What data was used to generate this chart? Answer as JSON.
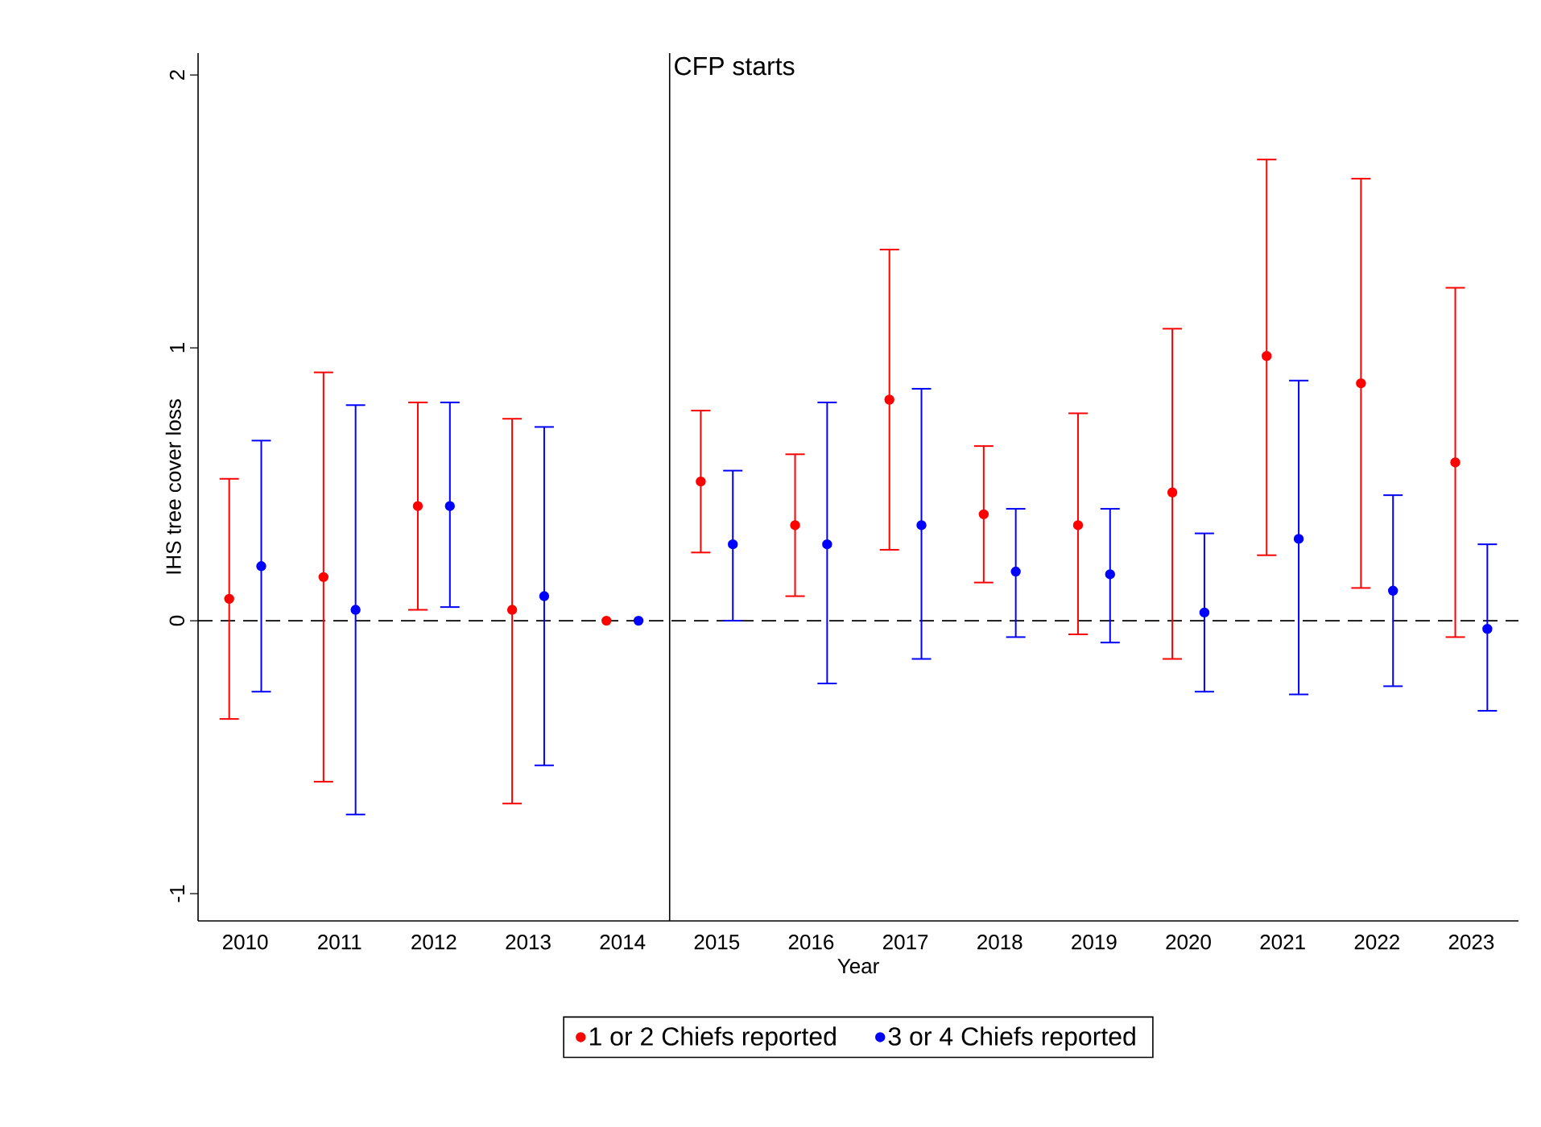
{
  "chart_data": {
    "type": "scatter",
    "xlabel": "Year",
    "ylabel": "IHS tree cover loss",
    "xlim": [
      2009.5,
      2023.5
    ],
    "xticks": [
      2010,
      2011,
      2012,
      2013,
      2014,
      2015,
      2016,
      2017,
      2018,
      2019,
      2020,
      2021,
      2022,
      2023
    ],
    "ylim": [
      -1.1,
      2.08
    ],
    "yticks": [
      -1,
      0,
      1,
      2
    ],
    "marker": "circle",
    "legend": "bottom",
    "ref_lines": [
      {
        "axis": "y",
        "value": 0,
        "line_style": "dashed",
        "color": "#000000"
      },
      {
        "axis": "x",
        "value": 2014.5,
        "label": "CFP starts",
        "line_style": "solid",
        "color": "#000000"
      }
    ],
    "series": [
      {
        "name": "1 or 2 Chiefs reported",
        "color": "#ff0000",
        "x": [
          2009.83,
          2010.83,
          2011.83,
          2012.83,
          2013.83,
          2014.83,
          2015.83,
          2016.83,
          2017.83,
          2018.83,
          2019.83,
          2020.83,
          2021.83,
          2022.83
        ],
        "values": [
          0.08,
          0.16,
          0.42,
          0.04,
          0,
          0.51,
          0.35,
          0.81,
          0.39,
          0.35,
          0.47,
          0.97,
          0.87,
          0.58
        ],
        "errors": [
          [
            -0.36,
            0.52
          ],
          [
            -0.59,
            0.91
          ],
          [
            0.04,
            0.8
          ],
          [
            -0.67,
            0.74
          ],
          null,
          [
            0.25,
            0.77
          ],
          [
            0.09,
            0.61
          ],
          [
            0.26,
            1.36
          ],
          [
            0.14,
            0.64
          ],
          [
            -0.05,
            0.76
          ],
          [
            -0.14,
            1.07
          ],
          [
            0.24,
            1.69
          ],
          [
            0.12,
            1.62
          ],
          [
            -0.06,
            1.22
          ]
        ]
      },
      {
        "name": "3 or 4 Chiefs reported",
        "color": "#0000ff",
        "x": [
          2010.17,
          2011.17,
          2012.17,
          2013.17,
          2014.17,
          2015.17,
          2016.17,
          2017.17,
          2018.17,
          2019.17,
          2020.17,
          2021.17,
          2022.17,
          2023.17
        ],
        "values": [
          0.2,
          0.04,
          0.42,
          0.09,
          0,
          0.28,
          0.28,
          0.35,
          0.18,
          0.17,
          0.03,
          0.3,
          0.11,
          -0.03
        ],
        "errors": [
          [
            -0.26,
            0.66
          ],
          [
            -0.71,
            0.79
          ],
          [
            0.05,
            0.8
          ],
          [
            -0.53,
            0.71
          ],
          null,
          [
            0.0,
            0.55
          ],
          [
            -0.23,
            0.8
          ],
          [
            -0.14,
            0.85
          ],
          [
            -0.06,
            0.41
          ],
          [
            -0.08,
            0.41
          ],
          [
            -0.26,
            0.32
          ],
          [
            -0.27,
            0.88
          ],
          [
            -0.24,
            0.46
          ],
          [
            -0.33,
            0.28
          ]
        ]
      }
    ]
  }
}
